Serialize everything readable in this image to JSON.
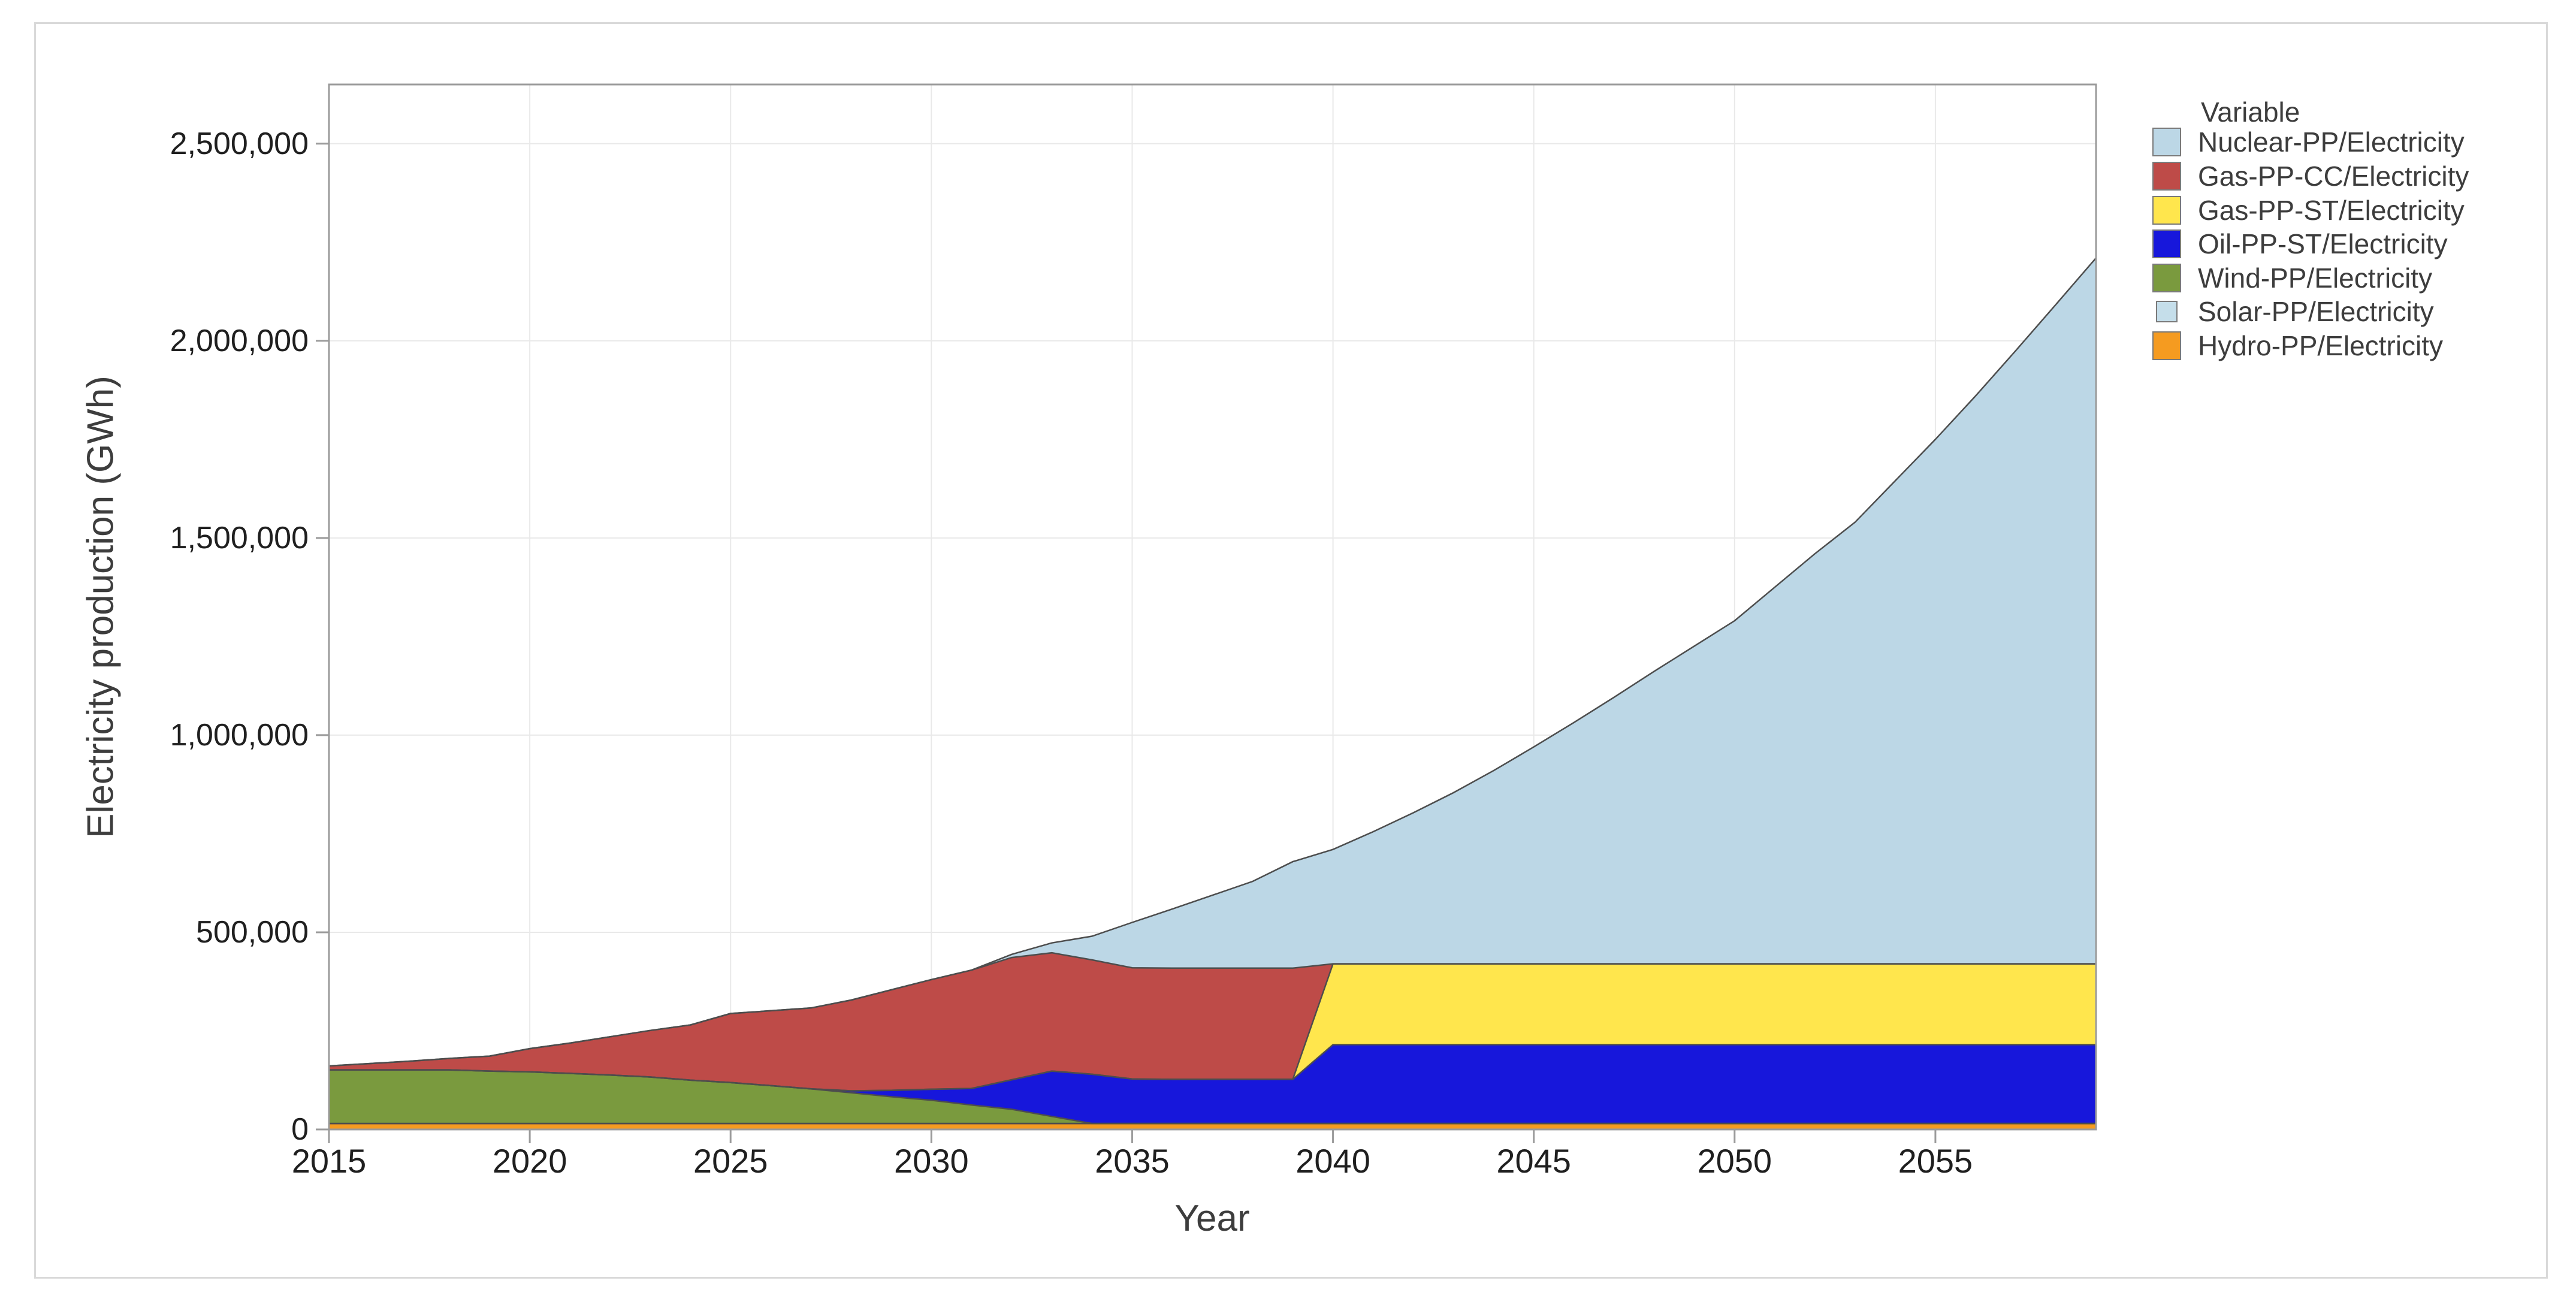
{
  "chart_data": {
    "type": "area",
    "subtype": "stacked",
    "title": "",
    "xlabel": "Year",
    "ylabel": "Electricity production (GWh)",
    "legend_title": "Variable",
    "legend_position": "top-right",
    "grid": true,
    "x_range": [
      2015,
      2059
    ],
    "y_range": [
      0,
      2650000
    ],
    "x_ticks": [
      {
        "value": 2015,
        "label": "2015"
      },
      {
        "value": 2020,
        "label": "2020"
      },
      {
        "value": 2025,
        "label": "2025"
      },
      {
        "value": 2030,
        "label": "2030"
      },
      {
        "value": 2035,
        "label": "2035"
      },
      {
        "value": 2040,
        "label": "2040"
      },
      {
        "value": 2045,
        "label": "2045"
      },
      {
        "value": 2050,
        "label": "2050"
      },
      {
        "value": 2055,
        "label": "2055"
      }
    ],
    "y_ticks": [
      {
        "value": 0,
        "label": "0"
      },
      {
        "value": 500000,
        "label": "500,000"
      },
      {
        "value": 1000000,
        "label": "1,000,000"
      },
      {
        "value": 1500000,
        "label": "1,500,000"
      },
      {
        "value": 2000000,
        "label": "2,000,000"
      },
      {
        "value": 2500000,
        "label": "2,500,000"
      }
    ],
    "years": [
      2015,
      2016,
      2017,
      2018,
      2019,
      2020,
      2021,
      2022,
      2023,
      2024,
      2025,
      2026,
      2027,
      2028,
      2029,
      2030,
      2031,
      2032,
      2033,
      2034,
      2035,
      2036,
      2037,
      2038,
      2039,
      2040,
      2041,
      2042,
      2043,
      2044,
      2045,
      2046,
      2047,
      2048,
      2049,
      2050,
      2051,
      2052,
      2053,
      2054,
      2055,
      2056,
      2057,
      2058,
      2059
    ],
    "series": [
      {
        "name": "Nuclear-PP/Electricity",
        "color": "#BCD7E6",
        "swatch_size": "large",
        "values": [
          0,
          0,
          0,
          0,
          0,
          0,
          0,
          0,
          0,
          0,
          0,
          0,
          0,
          0,
          0,
          0,
          0,
          8000,
          25000,
          60000,
          115000,
          150000,
          185000,
          220000,
          270000,
          290000,
          335000,
          383000,
          434000,
          490000,
          550000,
          612000,
          676000,
          742000,
          806000,
          870000,
          955000,
          1040000,
          1120000,
          1225000,
          1330000,
          1440000,
          1555000,
          1672000,
          1790000
        ]
      },
      {
        "name": "Gas-PP-CC/Electricity",
        "color": "#BE4B48",
        "swatch_size": "large",
        "values": [
          10000,
          16000,
          22000,
          29000,
          38000,
          59000,
          77000,
          97000,
          118000,
          140000,
          175000,
          190000,
          205000,
          230000,
          255000,
          278000,
          300000,
          310000,
          300000,
          290000,
          282000,
          282000,
          282000,
          282000,
          282000,
          0,
          0,
          0,
          0,
          0,
          0,
          0,
          0,
          0,
          0,
          0,
          0,
          0,
          0,
          0,
          0,
          0,
          0,
          0,
          0
        ]
      },
      {
        "name": "Gas-PP-ST/Electricity",
        "color": "#FFE64D",
        "swatch_size": "large",
        "values": [
          0,
          0,
          0,
          0,
          0,
          0,
          0,
          0,
          0,
          0,
          0,
          0,
          0,
          0,
          0,
          0,
          0,
          0,
          0,
          0,
          0,
          0,
          0,
          0,
          0,
          205000,
          205000,
          205000,
          205000,
          205000,
          205000,
          205000,
          205000,
          205000,
          205000,
          205000,
          205000,
          205000,
          205000,
          205000,
          205000,
          205000,
          205000,
          205000,
          205000
        ]
      },
      {
        "name": "Oil-PP-ST/Electricity",
        "color": "#1717DB",
        "swatch_size": "large",
        "values": [
          0,
          0,
          0,
          0,
          0,
          0,
          0,
          0,
          0,
          0,
          0,
          0,
          0,
          5000,
          16000,
          28000,
          42000,
          75000,
          115000,
          125000,
          113000,
          112000,
          112000,
          112000,
          112000,
          200000,
          200000,
          200000,
          200000,
          200000,
          200000,
          200000,
          200000,
          200000,
          200000,
          200000,
          200000,
          200000,
          200000,
          200000,
          200000,
          200000,
          200000,
          200000,
          200000
        ]
      },
      {
        "name": "Wind-PP/Electricity",
        "color": "#7A9A3E",
        "swatch_size": "large",
        "values": [
          136000,
          136000,
          136000,
          136000,
          133000,
          131000,
          127000,
          123000,
          118000,
          110000,
          104000,
          96000,
          88000,
          78000,
          68000,
          59000,
          47000,
          36000,
          18000,
          0,
          0,
          0,
          0,
          0,
          0,
          0,
          0,
          0,
          0,
          0,
          0,
          0,
          0,
          0,
          0,
          0,
          0,
          0,
          0,
          0,
          0,
          0,
          0,
          0,
          0
        ]
      },
      {
        "name": "Solar-PP/Electricity",
        "color": "#C5DEEA",
        "swatch_size": "small",
        "values": [
          0,
          0,
          0,
          0,
          0,
          0,
          0,
          0,
          0,
          0,
          0,
          0,
          0,
          0,
          0,
          0,
          0,
          0,
          0,
          0,
          0,
          0,
          0,
          0,
          0,
          0,
          0,
          0,
          0,
          0,
          0,
          0,
          0,
          0,
          0,
          0,
          0,
          0,
          0,
          0,
          0,
          0,
          0,
          0,
          0
        ]
      },
      {
        "name": "Hydro-PP/Electricity",
        "color": "#F59B20",
        "swatch_size": "large",
        "values": [
          15000,
          15000,
          15000,
          15000,
          15000,
          15000,
          15000,
          15000,
          15000,
          15000,
          15000,
          15000,
          15000,
          15000,
          15000,
          15000,
          15000,
          15000,
          15000,
          15000,
          15000,
          15000,
          15000,
          15000,
          15000,
          15000,
          15000,
          15000,
          15000,
          15000,
          15000,
          15000,
          15000,
          15000,
          15000,
          15000,
          15000,
          15000,
          15000,
          15000,
          15000,
          15000,
          15000,
          15000,
          15000
        ]
      }
    ],
    "stack_order_bottom_to_top": [
      "Hydro-PP/Electricity",
      "Solar-PP/Electricity",
      "Wind-PP/Electricity",
      "Oil-PP-ST/Electricity",
      "Gas-PP-ST/Electricity",
      "Gas-PP-CC/Electricity",
      "Nuclear-PP/Electricity"
    ],
    "colors": {
      "outline": "#4d4d4d",
      "axis": "#9b9b9b",
      "grid": "#e9e9e9",
      "tick_text": "#1f1f1f",
      "title_text": "#3d3d3d",
      "card_border": "#d9d9d9"
    }
  }
}
